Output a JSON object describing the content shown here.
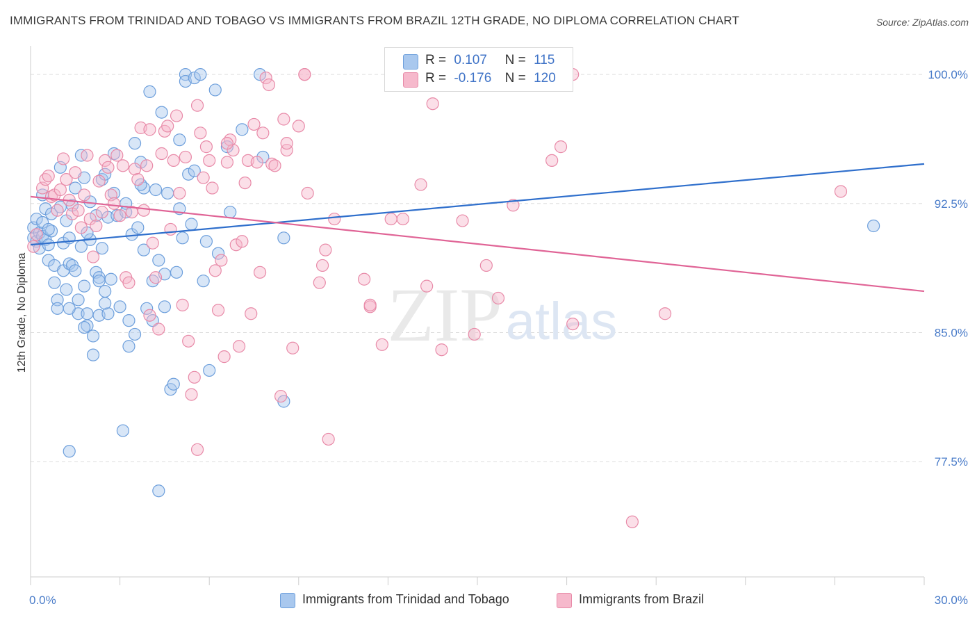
{
  "title": "IMMIGRANTS FROM TRINIDAD AND TOBAGO VS IMMIGRANTS FROM BRAZIL 12TH GRADE, NO DIPLOMA CORRELATION CHART",
  "source": "Source: ZipAtlas.com",
  "legend": {
    "rows": [
      {
        "r_label": "R =",
        "r_value": "0.107",
        "n_label": "N =",
        "n_value": "115"
      },
      {
        "r_label": "R =",
        "r_value": "-0.176",
        "n_label": "N =",
        "n_value": "120"
      }
    ]
  },
  "bottom_legend": [
    "Immigrants from Trinidad and Tobago",
    "Immigrants from Brazil"
  ],
  "watermark": {
    "zip": "ZIP",
    "atlas": "atlas"
  },
  "colors": {
    "blue_fill": "#a9c8ee",
    "blue_stroke": "#6d9fdc",
    "blue_line": "#2f6fcc",
    "pink_fill": "#f6b9cc",
    "pink_stroke": "#e88aa8",
    "pink_line": "#e06496",
    "axis_label": "#4a7cc9",
    "grid": "#dddddd"
  },
  "chart_data": {
    "type": "scatter",
    "title": "IMMIGRANTS FROM TRINIDAD AND TOBAGO VS IMMIGRANTS FROM BRAZIL 12TH GRADE, NO DIPLOMA CORRELATION CHART",
    "xlabel": "",
    "ylabel": "12th Grade, No Diploma",
    "xlim": [
      0,
      30
    ],
    "ylim": [
      70.8,
      101.5
    ],
    "x_tick_labels": [
      "0.0%",
      "30.0%"
    ],
    "y_ticks": [
      77.5,
      85.0,
      92.5,
      100.0
    ],
    "y_tick_labels": [
      "77.5%",
      "85.0%",
      "92.5%",
      "100.0%"
    ],
    "grid": true,
    "series": [
      {
        "name": "Immigrants from Trinidad and Tobago",
        "r": 0.107,
        "n": 115,
        "trend": {
          "x": [
            0,
            30
          ],
          "y": [
            90.1,
            94.8
          ]
        },
        "points": [
          [
            0.1,
            91.1
          ],
          [
            0.1,
            90.5
          ],
          [
            0.2,
            91.6
          ],
          [
            0.2,
            90.3
          ],
          [
            0.3,
            89.9
          ],
          [
            0.3,
            90.8
          ],
          [
            0.4,
            91.4
          ],
          [
            0.4,
            90.6
          ],
          [
            0.5,
            92.2
          ],
          [
            0.5,
            90.4
          ],
          [
            0.6,
            89.2
          ],
          [
            0.6,
            90.1
          ],
          [
            0.7,
            91.9
          ],
          [
            0.7,
            90.9
          ],
          [
            0.8,
            88.9
          ],
          [
            0.8,
            87.9
          ],
          [
            0.9,
            86.9
          ],
          [
            0.9,
            86.4
          ],
          [
            1.0,
            94.6
          ],
          [
            1.0,
            92.3
          ],
          [
            1.1,
            90.2
          ],
          [
            1.1,
            88.6
          ],
          [
            1.2,
            91.5
          ],
          [
            1.2,
            87.5
          ],
          [
            1.3,
            90.5
          ],
          [
            1.3,
            89.0
          ],
          [
            1.4,
            92.4
          ],
          [
            1.4,
            88.9
          ],
          [
            1.5,
            93.4
          ],
          [
            1.5,
            88.6
          ],
          [
            1.6,
            86.9
          ],
          [
            1.6,
            86.1
          ],
          [
            1.7,
            95.3
          ],
          [
            1.7,
            90.0
          ],
          [
            1.8,
            94.0
          ],
          [
            1.8,
            87.7
          ],
          [
            1.9,
            86.1
          ],
          [
            1.9,
            85.4
          ],
          [
            2.0,
            92.6
          ],
          [
            2.0,
            90.4
          ],
          [
            2.1,
            84.8
          ],
          [
            2.1,
            83.7
          ],
          [
            2.2,
            91.8
          ],
          [
            2.2,
            88.5
          ],
          [
            2.3,
            88.2
          ],
          [
            2.3,
            86.0
          ],
          [
            2.4,
            93.9
          ],
          [
            2.4,
            89.9
          ],
          [
            2.5,
            94.2
          ],
          [
            2.5,
            87.4
          ],
          [
            2.6,
            91.7
          ],
          [
            2.6,
            86.1
          ],
          [
            2.8,
            95.4
          ],
          [
            2.8,
            93.1
          ],
          [
            2.9,
            91.8
          ],
          [
            3.0,
            86.5
          ],
          [
            3.1,
            79.3
          ],
          [
            3.2,
            92.5
          ],
          [
            3.3,
            85.7
          ],
          [
            3.3,
            84.2
          ],
          [
            3.4,
            90.7
          ],
          [
            3.5,
            96.0
          ],
          [
            3.6,
            91.1
          ],
          [
            3.7,
            94.9
          ],
          [
            3.8,
            89.8
          ],
          [
            3.9,
            86.4
          ],
          [
            4.0,
            99.0
          ],
          [
            4.1,
            88.0
          ],
          [
            4.2,
            93.3
          ],
          [
            4.3,
            89.2
          ],
          [
            4.4,
            97.8
          ],
          [
            4.5,
            86.5
          ],
          [
            4.6,
            93.1
          ],
          [
            4.7,
            81.7
          ],
          [
            4.8,
            82.0
          ],
          [
            4.9,
            88.5
          ],
          [
            5.0,
            96.2
          ],
          [
            5.1,
            90.5
          ],
          [
            5.2,
            100.0
          ],
          [
            5.2,
            99.6
          ],
          [
            5.3,
            94.2
          ],
          [
            5.4,
            91.3
          ],
          [
            5.5,
            99.8
          ],
          [
            5.7,
            100.0
          ],
          [
            5.8,
            88.0
          ],
          [
            5.9,
            90.3
          ],
          [
            6.2,
            99.1
          ],
          [
            6.3,
            89.6
          ],
          [
            6.6,
            95.8
          ],
          [
            6.7,
            92.0
          ],
          [
            7.1,
            96.8
          ],
          [
            7.7,
            100.0
          ],
          [
            7.8,
            95.2
          ],
          [
            8.5,
            81.0
          ],
          [
            8.5,
            90.5
          ],
          [
            28.3,
            91.2
          ],
          [
            3.2,
            92.0
          ],
          [
            2.7,
            88.1
          ],
          [
            1.3,
            86.4
          ],
          [
            0.6,
            91.0
          ],
          [
            3.8,
            93.4
          ],
          [
            2.3,
            88.0
          ],
          [
            1.9,
            90.8
          ],
          [
            4.1,
            85.7
          ],
          [
            5.5,
            94.4
          ],
          [
            6.0,
            82.8
          ],
          [
            3.5,
            84.9
          ],
          [
            4.3,
            75.8
          ],
          [
            1.3,
            78.1
          ],
          [
            5.0,
            92.2
          ],
          [
            4.5,
            88.4
          ],
          [
            1.8,
            85.3
          ],
          [
            0.4,
            93.0
          ],
          [
            2.5,
            86.7
          ],
          [
            3.7,
            93.6
          ]
        ]
      },
      {
        "name": "Immigrants from Brazil",
        "r": -0.176,
        "n": 120,
        "trend": {
          "x": [
            0,
            30
          ],
          "y": [
            92.9,
            87.4
          ]
        },
        "points": [
          [
            0.1,
            90.0
          ],
          [
            0.2,
            90.7
          ],
          [
            0.4,
            93.4
          ],
          [
            0.5,
            93.9
          ],
          [
            0.6,
            94.1
          ],
          [
            0.7,
            92.9
          ],
          [
            0.8,
            93.0
          ],
          [
            0.9,
            92.1
          ],
          [
            1.0,
            93.3
          ],
          [
            1.1,
            95.1
          ],
          [
            1.2,
            93.9
          ],
          [
            1.3,
            92.7
          ],
          [
            1.4,
            91.9
          ],
          [
            1.5,
            94.3
          ],
          [
            1.6,
            92.1
          ],
          [
            1.7,
            91.1
          ],
          [
            1.8,
            93.0
          ],
          [
            1.9,
            95.3
          ],
          [
            2.0,
            91.6
          ],
          [
            2.1,
            89.4
          ],
          [
            2.2,
            91.2
          ],
          [
            2.3,
            93.8
          ],
          [
            2.4,
            92.0
          ],
          [
            2.5,
            95.0
          ],
          [
            2.6,
            94.6
          ],
          [
            2.7,
            93.0
          ],
          [
            2.8,
            92.5
          ],
          [
            2.9,
            95.3
          ],
          [
            3.0,
            91.8
          ],
          [
            3.1,
            94.7
          ],
          [
            3.2,
            88.2
          ],
          [
            3.3,
            87.9
          ],
          [
            3.4,
            92.0
          ],
          [
            3.5,
            94.5
          ],
          [
            3.6,
            93.9
          ],
          [
            3.7,
            96.9
          ],
          [
            3.8,
            92.1
          ],
          [
            3.9,
            94.7
          ],
          [
            4.0,
            86.0
          ],
          [
            4.1,
            90.2
          ],
          [
            4.2,
            88.2
          ],
          [
            4.3,
            85.2
          ],
          [
            4.4,
            95.4
          ],
          [
            4.5,
            96.7
          ],
          [
            4.6,
            97.0
          ],
          [
            4.7,
            91.0
          ],
          [
            4.8,
            95.0
          ],
          [
            4.9,
            97.6
          ],
          [
            5.0,
            93.1
          ],
          [
            5.1,
            86.6
          ],
          [
            5.2,
            95.2
          ],
          [
            5.3,
            84.5
          ],
          [
            5.4,
            81.4
          ],
          [
            5.5,
            82.4
          ],
          [
            5.6,
            98.2
          ],
          [
            5.7,
            96.6
          ],
          [
            5.8,
            94.0
          ],
          [
            5.9,
            95.8
          ],
          [
            6.0,
            95.0
          ],
          [
            6.1,
            93.4
          ],
          [
            6.2,
            88.6
          ],
          [
            6.3,
            86.3
          ],
          [
            6.4,
            89.2
          ],
          [
            6.5,
            83.6
          ],
          [
            6.6,
            94.9
          ],
          [
            6.7,
            96.2
          ],
          [
            6.8,
            95.6
          ],
          [
            6.9,
            90.1
          ],
          [
            7.0,
            84.2
          ],
          [
            7.1,
            90.3
          ],
          [
            7.2,
            93.7
          ],
          [
            7.3,
            95.0
          ],
          [
            7.4,
            86.1
          ],
          [
            7.5,
            97.1
          ],
          [
            7.6,
            94.9
          ],
          [
            7.7,
            88.5
          ],
          [
            7.8,
            96.6
          ],
          [
            7.9,
            99.8
          ],
          [
            8.0,
            99.4
          ],
          [
            8.1,
            94.8
          ],
          [
            8.2,
            94.7
          ],
          [
            8.4,
            81.3
          ],
          [
            8.5,
            97.4
          ],
          [
            8.6,
            95.6
          ],
          [
            8.8,
            84.1
          ],
          [
            9.0,
            97.0
          ],
          [
            9.2,
            100.0
          ],
          [
            9.3,
            93.1
          ],
          [
            9.7,
            87.9
          ],
          [
            9.8,
            88.9
          ],
          [
            9.9,
            89.8
          ],
          [
            10.2,
            91.6
          ],
          [
            11.2,
            88.1
          ],
          [
            11.4,
            86.5
          ],
          [
            11.8,
            84.3
          ],
          [
            12.1,
            91.6
          ],
          [
            12.5,
            91.6
          ],
          [
            13.1,
            93.6
          ],
          [
            13.3,
            87.7
          ],
          [
            13.5,
            98.3
          ],
          [
            13.8,
            84.0
          ],
          [
            14.5,
            91.5
          ],
          [
            14.9,
            84.9
          ],
          [
            15.3,
            88.9
          ],
          [
            15.7,
            87.0
          ],
          [
            16.2,
            92.4
          ],
          [
            17.5,
            95.0
          ],
          [
            17.8,
            95.8
          ],
          [
            18.2,
            100.0
          ],
          [
            18.2,
            85.5
          ],
          [
            21.3,
            86.1
          ],
          [
            27.2,
            93.2
          ],
          [
            10.0,
            78.8
          ],
          [
            20.2,
            74.0
          ],
          [
            4.0,
            96.8
          ],
          [
            5.6,
            78.2
          ],
          [
            11.4,
            86.6
          ],
          [
            8.6,
            96.0
          ],
          [
            9.2,
            100.0
          ],
          [
            6.6,
            96.0
          ]
        ]
      }
    ]
  }
}
